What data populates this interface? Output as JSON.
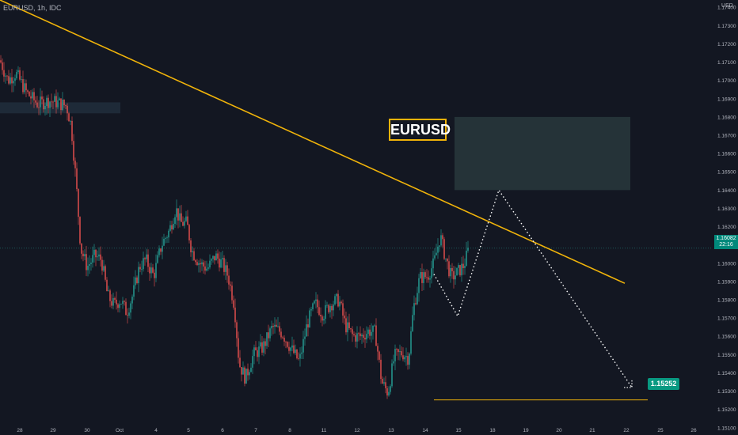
{
  "header": {
    "symbol": "EURUSD, 1h, IDC",
    "currency": "USD"
  },
  "annotations": {
    "brand_label": "EURUSD",
    "target_price": "1.15252",
    "current_price": "1.16082",
    "countdown": "22:16"
  },
  "colors": {
    "background": "#131722",
    "trendline": "#f0b30a",
    "bull": "#26a69a",
    "bear": "#ef5350",
    "zone": "#253338",
    "target_badge": "#089981"
  },
  "chart_data": {
    "type": "candlestick",
    "y_axis": {
      "ticks": [
        "1.17400",
        "1.17300",
        "1.17200",
        "1.17100",
        "1.17000",
        "1.16900",
        "1.16800",
        "1.16700",
        "1.16600",
        "1.16500",
        "1.16400",
        "1.16300",
        "1.16200",
        "1.16100",
        "1.16000",
        "1.15900",
        "1.15800",
        "1.15700",
        "1.15600",
        "1.15500",
        "1.15400",
        "1.15300",
        "1.15200",
        "1.15100"
      ],
      "range": [
        1.1506,
        1.1744
      ]
    },
    "x_axis": {
      "ticks": [
        "28",
        "29",
        "30",
        "Oct",
        "4",
        "5",
        "6",
        "7",
        "8",
        "9",
        "10",
        "11",
        "12",
        "13",
        "14",
        "15",
        "18",
        "19",
        "20",
        "21",
        "22",
        "25",
        "26"
      ]
    },
    "price_path": [
      [
        0,
        1.1711
      ],
      [
        10,
        1.17
      ],
      [
        20,
        1.1704
      ],
      [
        34,
        1.1693
      ],
      [
        48,
        1.1687
      ],
      [
        62,
        1.1689
      ],
      [
        72,
        1.1688
      ],
      [
        84,
        1.1686
      ],
      [
        90,
        1.1675
      ],
      [
        96,
        1.1645
      ],
      [
        102,
        1.1608
      ],
      [
        110,
        1.1598
      ],
      [
        120,
        1.1604
      ],
      [
        128,
        1.1602
      ],
      [
        136,
        1.1582
      ],
      [
        144,
        1.1577
      ],
      [
        152,
        1.158
      ],
      [
        160,
        1.1573
      ],
      [
        168,
        1.1583
      ],
      [
        176,
        1.1598
      ],
      [
        184,
        1.1602
      ],
      [
        194,
        1.1593
      ],
      [
        204,
        1.161
      ],
      [
        214,
        1.1618
      ],
      [
        222,
        1.163
      ],
      [
        228,
        1.1622
      ],
      [
        236,
        1.1622
      ],
      [
        242,
        1.1607
      ],
      [
        252,
        1.16
      ],
      [
        262,
        1.1597
      ],
      [
        272,
        1.1604
      ],
      [
        280,
        1.16
      ],
      [
        288,
        1.1593
      ],
      [
        296,
        1.1577
      ],
      [
        302,
        1.1545
      ],
      [
        310,
        1.1537
      ],
      [
        320,
        1.155
      ],
      [
        332,
        1.1554
      ],
      [
        344,
        1.1565
      ],
      [
        356,
        1.1562
      ],
      [
        368,
        1.1553
      ],
      [
        378,
        1.1546
      ],
      [
        388,
        1.1567
      ],
      [
        398,
        1.1578
      ],
      [
        408,
        1.1572
      ],
      [
        418,
        1.1578
      ],
      [
        428,
        1.158
      ],
      [
        436,
        1.1566
      ],
      [
        446,
        1.156
      ],
      [
        456,
        1.156
      ],
      [
        466,
        1.1563
      ],
      [
        474,
        1.1562
      ],
      [
        482,
        1.1535
      ],
      [
        490,
        1.1529
      ],
      [
        498,
        1.1549
      ],
      [
        508,
        1.1551
      ],
      [
        516,
        1.1548
      ],
      [
        522,
        1.1575
      ],
      [
        530,
        1.1592
      ],
      [
        540,
        1.1593
      ],
      [
        548,
        1.16
      ],
      [
        556,
        1.1615
      ],
      [
        562,
        1.1604
      ],
      [
        570,
        1.1592
      ],
      [
        578,
        1.1595
      ],
      [
        586,
        1.1599
      ],
      [
        592,
        1.1608
      ]
    ],
    "trendline": [
      [
        0,
        1.1744
      ],
      [
        789,
        1.1589
      ]
    ],
    "resistance_zone_left": {
      "x": [
        0,
        152
      ],
      "y": [
        1.1688,
        1.1682
      ]
    },
    "resistance_zone_right": {
      "x": [
        574,
        796
      ],
      "y": [
        1.168,
        1.164
      ]
    },
    "target_line": {
      "x": [
        548,
        818
      ],
      "y": 1.15252
    },
    "projection_path": [
      [
        548,
        1.1594
      ],
      [
        578,
        1.1571
      ],
      [
        630,
        1.164
      ],
      [
        798,
        1.1532
      ]
    ],
    "current_price_line": 1.16082
  }
}
